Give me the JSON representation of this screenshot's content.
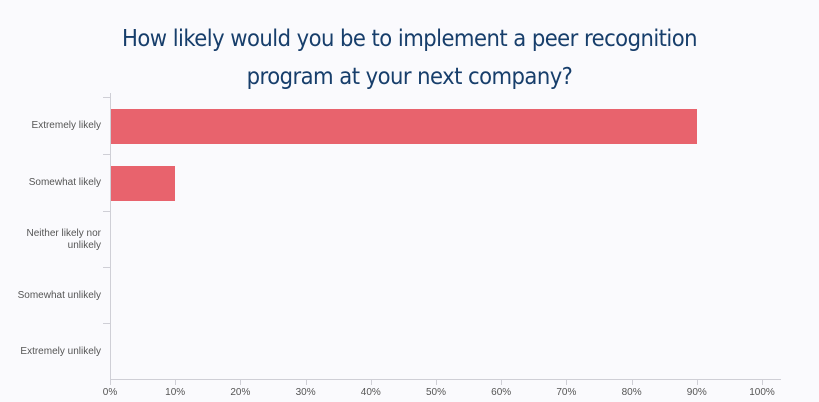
{
  "chart_data": {
    "type": "bar",
    "orientation": "horizontal",
    "title": "How likely would you be to implement a peer recognition program at your next company?",
    "title_lines": [
      "How likely would you be to implement a peer recognition",
      "program at your next company?"
    ],
    "categories": [
      "Extremely likely",
      "Somewhat likely",
      "Neither likely nor unlikely",
      "Somewhat unlikely",
      "Extremely unlikely"
    ],
    "values": [
      90,
      10,
      0,
      0,
      0
    ],
    "xlabel": "",
    "ylabel": "",
    "xlim": [
      0,
      100
    ],
    "xticks": [
      "0%",
      "10%",
      "20%",
      "30%",
      "40%",
      "50%",
      "60%",
      "70%",
      "80%",
      "90%",
      "100%"
    ],
    "grid": false,
    "legend": null,
    "bar_color": "#e8636d",
    "title_color": "#173e6b"
  }
}
